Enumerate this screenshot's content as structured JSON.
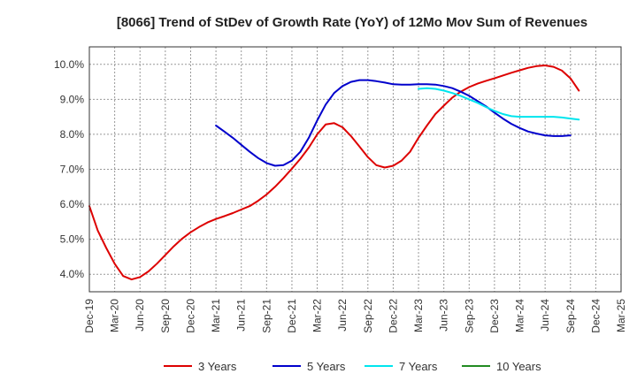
{
  "chart_data": {
    "type": "line",
    "title": "[8066]  Trend of StDev of Growth Rate (YoY) of 12Mo Mov Sum of Revenues",
    "xlabel": "",
    "ylabel": "",
    "ylim": [
      3.5,
      10.5
    ],
    "yticks": [
      4.0,
      5.0,
      6.0,
      7.0,
      8.0,
      9.0,
      10.0
    ],
    "ytick_labels": [
      "4.0%",
      "5.0%",
      "6.0%",
      "7.0%",
      "8.0%",
      "9.0%",
      "10.0%"
    ],
    "xtick_labels": [
      "Dec-19",
      "Mar-20",
      "Jun-20",
      "Sep-20",
      "Dec-20",
      "Mar-21",
      "Jun-21",
      "Sep-21",
      "Dec-21",
      "Mar-22",
      "Jun-22",
      "Sep-22",
      "Dec-22",
      "Mar-23",
      "Jun-23",
      "Sep-23",
      "Dec-23",
      "Mar-24",
      "Jun-24",
      "Sep-24",
      "Dec-24",
      "Mar-25"
    ],
    "x_start": "Dec-19",
    "x_step_months": 1,
    "x_count": 64,
    "grid": true,
    "legend_position": "bottom",
    "series": [
      {
        "name": "3 Years",
        "color": "#dd0000",
        "start_index": 0,
        "values": [
          5.95,
          5.25,
          4.75,
          4.3,
          3.95,
          3.85,
          3.92,
          4.08,
          4.3,
          4.55,
          4.8,
          5.02,
          5.2,
          5.35,
          5.48,
          5.58,
          5.66,
          5.75,
          5.85,
          5.95,
          6.1,
          6.28,
          6.5,
          6.75,
          7.02,
          7.3,
          7.62,
          8.0,
          8.28,
          8.32,
          8.2,
          7.95,
          7.65,
          7.35,
          7.12,
          7.05,
          7.1,
          7.25,
          7.5,
          7.9,
          8.25,
          8.58,
          8.82,
          9.05,
          9.22,
          9.35,
          9.45,
          9.53,
          9.6,
          9.68,
          9.76,
          9.83,
          9.9,
          9.95,
          9.97,
          9.93,
          9.82,
          9.6,
          9.25
        ]
      },
      {
        "name": "5 Years",
        "color": "#0000cc",
        "start_index": 15,
        "values": [
          8.25,
          8.08,
          7.9,
          7.7,
          7.5,
          7.32,
          7.18,
          7.1,
          7.12,
          7.25,
          7.5,
          7.9,
          8.4,
          8.85,
          9.18,
          9.38,
          9.5,
          9.55,
          9.55,
          9.52,
          9.48,
          9.43,
          9.42,
          9.42,
          9.43,
          9.43,
          9.42,
          9.38,
          9.32,
          9.22,
          9.1,
          8.95,
          8.8,
          8.62,
          8.45,
          8.3,
          8.18,
          8.08,
          8.02,
          7.97,
          7.95,
          7.95,
          7.97
        ]
      },
      {
        "name": "7 Years",
        "color": "#00e5ee",
        "start_index": 39,
        "values": [
          9.3,
          9.32,
          9.3,
          9.25,
          9.18,
          9.1,
          9.0,
          8.9,
          8.78,
          8.67,
          8.58,
          8.52,
          8.5,
          8.5,
          8.5,
          8.5,
          8.5,
          8.48,
          8.45,
          8.42
        ]
      },
      {
        "name": "10 Years",
        "color": "#228b22",
        "start_index": 0,
        "values": []
      }
    ]
  }
}
